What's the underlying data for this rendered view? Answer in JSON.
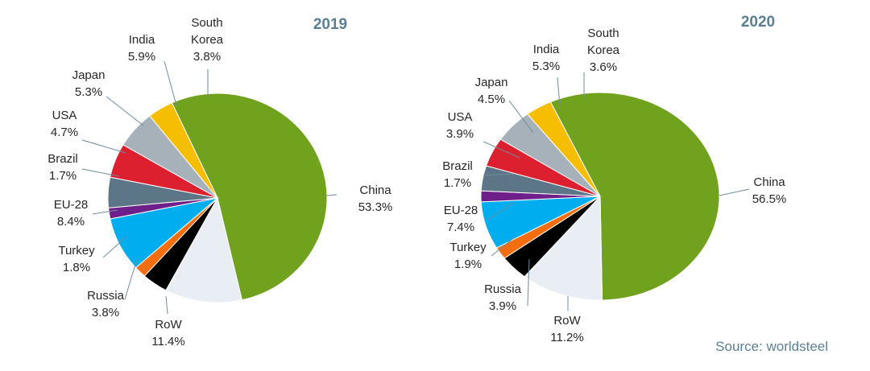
{
  "chart_data": [
    {
      "type": "pie",
      "title": "2019",
      "colors": [
        "#70a21e",
        "#e9eef5",
        "#000000",
        "#f46d0f",
        "#00aeef",
        "#6f1f8a",
        "#5c7587",
        "#dc2030",
        "#a6b1ba",
        "#f6be00"
      ],
      "slices": [
        {
          "label": "China",
          "value": 53.3,
          "display": "53.3%"
        },
        {
          "label": "RoW",
          "value": 11.4,
          "display": "11.4%"
        },
        {
          "label": "Russia",
          "value": 3.8,
          "display": "3.8%"
        },
        {
          "label": "Turkey",
          "value": 1.8,
          "display": "1.8%"
        },
        {
          "label": "EU-28",
          "value": 8.4,
          "display": "8.4%"
        },
        {
          "label": "Brazil",
          "value": 1.7,
          "display": "1.7%"
        },
        {
          "label": "USA",
          "value": 4.7,
          "display": "4.7%"
        },
        {
          "label": "Japan",
          "value": 5.3,
          "display": "5.3%"
        },
        {
          "label": "India",
          "value": 5.9,
          "display": "5.9%"
        },
        {
          "label": "South\nKorea",
          "value": 3.8,
          "display": "3.8%"
        }
      ]
    },
    {
      "type": "pie",
      "title": "2020",
      "colors": [
        "#70a21e",
        "#e9eef5",
        "#000000",
        "#f46d0f",
        "#00aeef",
        "#6f1f8a",
        "#5c7587",
        "#dc2030",
        "#a6b1ba",
        "#f6be00"
      ],
      "slices": [
        {
          "label": "China",
          "value": 56.5,
          "display": "56.5%"
        },
        {
          "label": "RoW",
          "value": 11.2,
          "display": "11.2%"
        },
        {
          "label": "Russia",
          "value": 3.9,
          "display": "3.9%"
        },
        {
          "label": "Turkey",
          "value": 1.9,
          "display": "1.9%"
        },
        {
          "label": "EU-28",
          "value": 7.4,
          "display": "7.4%"
        },
        {
          "label": "Brazil",
          "value": 1.7,
          "display": "1.7%"
        },
        {
          "label": "USA",
          "value": 3.9,
          "display": "3.9%"
        },
        {
          "label": "Japan",
          "value": 4.5,
          "display": "4.5%"
        },
        {
          "label": "India",
          "value": 5.3,
          "display": "5.3%"
        },
        {
          "label": "South\nKorea",
          "value": 3.6,
          "display": "3.6%"
        }
      ]
    }
  ],
  "source": "Source: worldsteel"
}
